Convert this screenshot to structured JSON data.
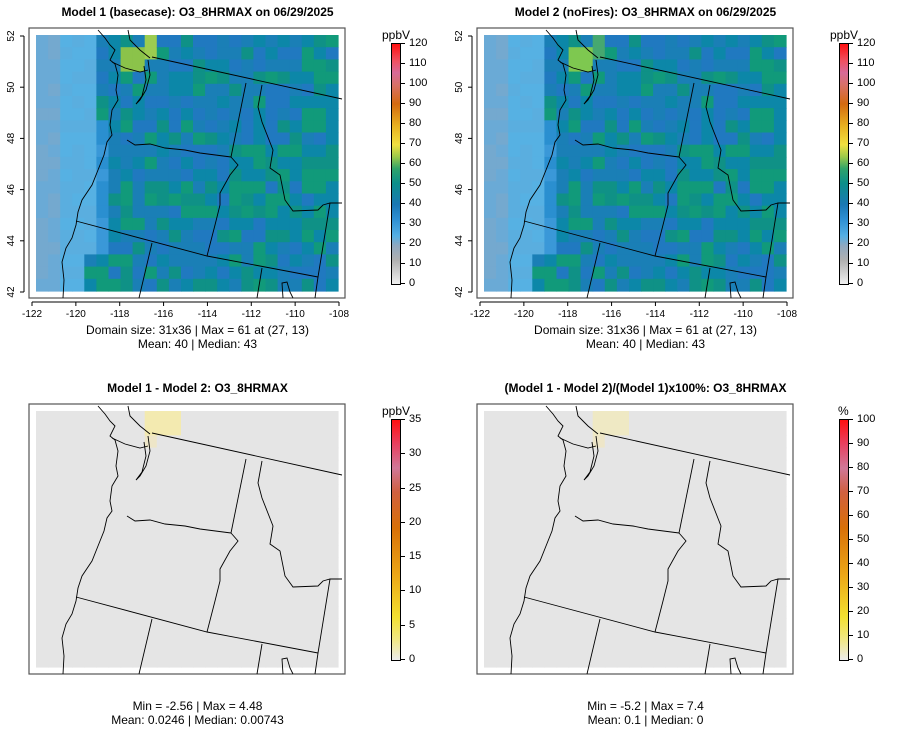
{
  "chart_data": [
    {
      "type": "heatmap",
      "title": "Model 1 (basecase): O3_8HRMAX on 06/29/2025",
      "colorbar_label": "ppbV",
      "colorbar_ticks": [
        "0",
        "10",
        "20",
        "30",
        "40",
        "50",
        "60",
        "70",
        "80",
        "90",
        "100",
        "110",
        "120"
      ],
      "colorbar_range": [
        0,
        120
      ],
      "x_ticks": [
        "-122",
        "-120",
        "-118",
        "-116",
        "-114",
        "-112",
        "-110",
        "-108"
      ],
      "y_ticks": [
        "42",
        "44",
        "46",
        "48",
        "50",
        "52"
      ],
      "xlim": [
        -122,
        -108
      ],
      "ylim": [
        42,
        52
      ],
      "stats_line1": "Domain size: 31x36 | Max = 61 at (27, 13)",
      "stats_line2": "Mean: 40 |  Median: 43",
      "field": "ozone"
    },
    {
      "type": "heatmap",
      "title": "Model 2 (noFires): O3_8HRMAX on 06/29/2025",
      "colorbar_label": "ppbV",
      "colorbar_ticks": [
        "0",
        "10",
        "20",
        "30",
        "40",
        "50",
        "60",
        "70",
        "80",
        "90",
        "100",
        "110",
        "120"
      ],
      "colorbar_range": [
        0,
        120
      ],
      "x_ticks": [
        "-122",
        "-120",
        "-118",
        "-116",
        "-114",
        "-112",
        "-110",
        "-108"
      ],
      "y_ticks": [
        "42",
        "44",
        "46",
        "48",
        "50",
        "52"
      ],
      "xlim": [
        -122,
        -108
      ],
      "ylim": [
        42,
        52
      ],
      "stats_line1": "Domain size: 31x36 | Max = 61 at (27, 13)",
      "stats_line2": "Mean: 40 |  Median: 43",
      "field": "ozone2"
    },
    {
      "type": "heatmap",
      "title": "Model 1 - Model 2: O3_8HRMAX",
      "colorbar_label": "ppbV",
      "colorbar_ticks": [
        "0",
        "5",
        "10",
        "15",
        "20",
        "25",
        "30",
        "35"
      ],
      "colorbar_range": [
        0,
        35
      ],
      "x_ticks": [],
      "y_ticks": [],
      "stats_line1": "Min = -2.56 | Max = 4.48",
      "stats_line2": "Mean: 0.0246 |  Median: 0.00743",
      "field": "diff"
    },
    {
      "type": "heatmap",
      "title": "(Model 1 - Model 2)/(Model 1)x100%: O3_8HRMAX",
      "colorbar_label": "%",
      "colorbar_ticks": [
        "0",
        "10",
        "20",
        "30",
        "40",
        "50",
        "60",
        "70",
        "80",
        "90",
        "100"
      ],
      "colorbar_range": [
        0,
        100
      ],
      "x_ticks": [],
      "y_ticks": [],
      "stats_line1": "Min = -5.2 | Max = 7.4",
      "stats_line2": "Mean: 0.1 |  Median: 0",
      "field": "pct"
    }
  ]
}
